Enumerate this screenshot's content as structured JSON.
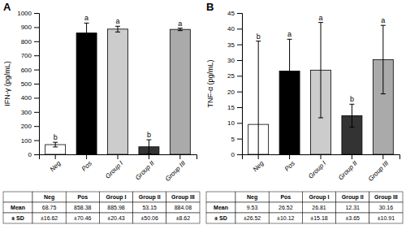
{
  "chart_data": [
    {
      "type": "bar",
      "title": "A",
      "categories": [
        "Neg",
        "Pos",
        "Group I",
        "Group II",
        "Group III"
      ],
      "values": [
        68.75,
        858.38,
        885.98,
        53.15,
        884.08
      ],
      "errors": [
        16.62,
        70.46,
        20.43,
        50.06,
        8.62
      ],
      "letters": [
        "b",
        "a",
        "a",
        "b",
        "a"
      ],
      "colors": [
        "white",
        "black",
        "#cccccc",
        "#333333",
        "#aaaaaa"
      ],
      "ylabel": "IFN-γ (pg/mL)",
      "ylim": [
        0,
        1000
      ],
      "yticks": [
        0,
        100,
        200,
        300,
        400,
        500,
        600,
        700,
        800,
        900,
        1000
      ],
      "grid": false,
      "table": {
        "columns": [
          "Neg",
          "Pos",
          "Group I",
          "Group II",
          "Group III"
        ],
        "rows": [
          {
            "label": "Mean",
            "cells": [
              "68.75",
              "858.38",
              "885.98",
              "53.15",
              "884.08"
            ]
          },
          {
            "label": "± SD",
            "cells": [
              "±16.62",
              "±70.46",
              "±20.43",
              "±50.06",
              "±8.62"
            ]
          }
        ]
      }
    },
    {
      "type": "bar",
      "title": "B",
      "categories": [
        "Neg",
        "Pos",
        "Group I",
        "Group II",
        "Group III"
      ],
      "values": [
        9.53,
        26.52,
        26.81,
        12.31,
        30.16
      ],
      "errors": [
        26.52,
        10.12,
        15.18,
        3.65,
        10.91
      ],
      "letters": [
        "b",
        "a",
        "a",
        "b",
        "a"
      ],
      "colors": [
        "white",
        "black",
        "#cccccc",
        "#333333",
        "#aaaaaa"
      ],
      "ylabel": "TNF-α (pg/mL)",
      "ylim": [
        0,
        45
      ],
      "yticks": [
        0,
        5,
        10,
        15,
        20,
        25,
        30,
        35,
        40,
        45
      ],
      "grid": false,
      "table": {
        "columns": [
          "Neg",
          "Pos",
          "Group I",
          "Group II",
          "Group III"
        ],
        "rows": [
          {
            "label": "Mean",
            "cells": [
              "9.53",
              "26.52",
              "26.81",
              "12.31",
              "30.16"
            ]
          },
          {
            "label": "± SD",
            "cells": [
              "±26.52",
              "±10.12",
              "±15.18",
              "±3.65",
              "±10.91"
            ]
          }
        ]
      }
    }
  ]
}
